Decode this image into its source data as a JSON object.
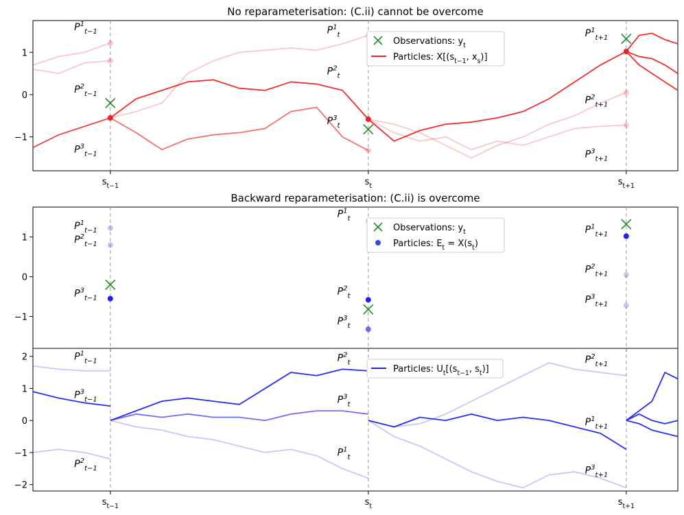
{
  "figure": {
    "ticks": {
      "time_labels": [
        "s_{t−1}",
        "s_t",
        "s_{t+1}"
      ]
    }
  },
  "chart_data": [
    {
      "id": "top",
      "type": "line",
      "title": "No reparameterisation: (C.ii) cannot be overcome",
      "xlabel": "",
      "ylabel": "",
      "xlim": [
        -0.3,
        2.2
      ],
      "ylim": [
        -1.8,
        1.75
      ],
      "yticks": [
        -1,
        0,
        1
      ],
      "xticks": [
        0,
        1,
        2
      ],
      "xtick_labels": [
        "s_{t−1}",
        "s_t",
        "s_{t+1}"
      ],
      "grid": false,
      "legend_position": "top-center",
      "legend": [
        {
          "label": "Observations: y_t",
          "marker": "x",
          "color": "#228b22"
        },
        {
          "label": "Particles: X[(s_{t−1}, x_s)]",
          "marker": "line",
          "color": "#ee2222"
        }
      ],
      "observations": [
        {
          "x": 0,
          "y": -0.2
        },
        {
          "x": 1,
          "y": -0.82
        },
        {
          "x": 2,
          "y": 1.32
        }
      ],
      "particle_points": [
        {
          "x": 0,
          "y": 1.22,
          "alpha": 0.25
        },
        {
          "x": 0,
          "y": 0.8,
          "alpha": 0.25
        },
        {
          "x": 0,
          "y": -0.55,
          "alpha": 1.0
        },
        {
          "x": 1,
          "y": 1.4,
          "alpha": 0.25
        },
        {
          "x": 1,
          "y": -0.58,
          "alpha": 1.0
        },
        {
          "x": 1,
          "y": -1.32,
          "alpha": 0.25
        },
        {
          "x": 2,
          "y": 1.02,
          "alpha": 1.0
        },
        {
          "x": 2,
          "y": 0.05,
          "alpha": 0.25
        },
        {
          "x": 2,
          "y": -0.72,
          "alpha": 0.25
        }
      ],
      "series": [
        {
          "x": [
            -0.3,
            -0.2,
            -0.1,
            0
          ],
          "values": [
            0.6,
            0.5,
            0.75,
            0.8
          ],
          "alpha": 0.25
        },
        {
          "x": [
            -0.3,
            -0.2,
            -0.1,
            0
          ],
          "values": [
            0.7,
            0.9,
            1.0,
            1.22
          ],
          "alpha": 0.25
        },
        {
          "x": [
            -0.3,
            -0.2,
            -0.1,
            0
          ],
          "values": [
            -1.25,
            -0.95,
            -0.75,
            -0.55
          ],
          "alpha": 0.85
        },
        {
          "x": [
            0,
            0.1,
            0.2,
            0.3,
            0.4,
            0.5,
            0.6,
            0.7,
            0.8,
            0.9,
            1.0
          ],
          "values": [
            -0.55,
            -0.1,
            0.1,
            0.3,
            0.35,
            0.15,
            0.1,
            0.3,
            0.25,
            0.1,
            -0.58
          ],
          "alpha": 0.95
        },
        {
          "x": [
            0,
            0.1,
            0.2,
            0.3,
            0.4,
            0.5,
            0.6,
            0.7,
            0.8,
            0.9,
            1.0
          ],
          "values": [
            -0.55,
            -0.4,
            -0.2,
            0.5,
            0.8,
            1.0,
            1.05,
            1.1,
            1.05,
            1.2,
            1.4
          ],
          "alpha": 0.25
        },
        {
          "x": [
            0,
            0.1,
            0.2,
            0.3,
            0.4,
            0.5,
            0.6,
            0.7,
            0.8,
            0.9,
            1.0
          ],
          "values": [
            -0.55,
            -0.9,
            -1.3,
            -1.05,
            -0.95,
            -0.9,
            -0.8,
            -0.4,
            -0.3,
            -1.0,
            -1.32
          ],
          "alpha": 0.65
        },
        {
          "x": [
            1.0,
            1.1,
            1.2,
            1.3,
            1.4,
            1.5,
            1.6,
            1.7,
            1.8,
            1.9,
            2.0
          ],
          "values": [
            -0.58,
            -1.1,
            -0.85,
            -0.7,
            -0.65,
            -0.55,
            -0.4,
            -0.1,
            0.3,
            0.7,
            1.02
          ],
          "alpha": 0.95
        },
        {
          "x": [
            1.0,
            1.1,
            1.2,
            1.3,
            1.4,
            1.5,
            1.6,
            1.7,
            1.8,
            1.9,
            2.0
          ],
          "values": [
            -0.58,
            -0.7,
            -0.9,
            -1.2,
            -1.5,
            -1.2,
            -1.0,
            -0.7,
            -0.5,
            -0.2,
            0.05
          ],
          "alpha": 0.25
        },
        {
          "x": [
            1.0,
            1.1,
            1.2,
            1.3,
            1.4,
            1.5,
            1.6,
            1.7,
            1.8,
            1.9,
            2.0
          ],
          "values": [
            -0.58,
            -0.9,
            -1.1,
            -1.0,
            -1.3,
            -1.1,
            -1.2,
            -1.0,
            -0.8,
            -0.75,
            -0.72
          ],
          "alpha": 0.25
        },
        {
          "x": [
            2.0,
            2.05,
            2.1,
            2.15,
            2.2
          ],
          "values": [
            1.02,
            1.4,
            1.45,
            1.3,
            1.2
          ],
          "alpha": 0.95
        },
        {
          "x": [
            2.0,
            2.05,
            2.1,
            2.15,
            2.2
          ],
          "values": [
            1.02,
            0.9,
            0.85,
            0.7,
            0.5
          ],
          "alpha": 0.95
        },
        {
          "x": [
            2.0,
            2.05,
            2.1,
            2.15,
            2.2
          ],
          "values": [
            1.02,
            0.7,
            0.5,
            0.3,
            0.1
          ],
          "alpha": 0.95
        }
      ],
      "annotations": [
        {
          "text": "P^1_{t−1}",
          "x": -0.14,
          "y": 1.52
        },
        {
          "text": "P^2_{t−1}",
          "x": -0.14,
          "y": 0.05
        },
        {
          "text": "P^3_{t−1}",
          "x": -0.14,
          "y": -1.37
        },
        {
          "text": "P^1_t",
          "x": 0.84,
          "y": 1.45
        },
        {
          "text": "P^2_t",
          "x": 0.84,
          "y": 0.48
        },
        {
          "text": "P^3_t",
          "x": 0.84,
          "y": -0.7
        },
        {
          "text": "P^1_{t+1}",
          "x": 1.84,
          "y": 1.38
        },
        {
          "text": "P^2_{t+1}",
          "x": 1.84,
          "y": -0.2
        },
        {
          "text": "P^3_{t+1}",
          "x": 1.84,
          "y": -1.48
        }
      ]
    },
    {
      "id": "middle",
      "type": "scatter",
      "title": "Backward reparameterisation: (C.ii) is overcome",
      "xlabel": "",
      "ylabel": "",
      "xlim": [
        -0.3,
        2.2
      ],
      "ylim": [
        -1.8,
        1.75
      ],
      "yticks": [
        -1,
        0,
        1
      ],
      "xticks": [
        0,
        1,
        2
      ],
      "grid": false,
      "legend_position": "top-center",
      "legend": [
        {
          "label": "Observations: y_t",
          "marker": "x",
          "color": "#228b22"
        },
        {
          "label": "Particles: E_t = X(s_t)",
          "marker": "dot",
          "color": "#1010dd"
        }
      ],
      "observations": [
        {
          "x": 0,
          "y": -0.2
        },
        {
          "x": 1,
          "y": -0.82
        },
        {
          "x": 2,
          "y": 1.32
        }
      ],
      "particle_points": [
        {
          "x": 0,
          "y": 1.22,
          "alpha": 0.25
        },
        {
          "x": 0,
          "y": 0.8,
          "alpha": 0.25
        },
        {
          "x": 0,
          "y": -0.55,
          "alpha": 1.0
        },
        {
          "x": 1,
          "y": 1.4,
          "alpha": 0.25
        },
        {
          "x": 1,
          "y": -0.58,
          "alpha": 1.0
        },
        {
          "x": 1,
          "y": -1.32,
          "alpha": 0.65
        },
        {
          "x": 2,
          "y": 1.02,
          "alpha": 1.0
        },
        {
          "x": 2,
          "y": 0.05,
          "alpha": 0.25
        },
        {
          "x": 2,
          "y": -0.72,
          "alpha": 0.25
        }
      ],
      "annotations": [
        {
          "text": "P^1_{t−1}",
          "x": -0.14,
          "y": 1.2
        },
        {
          "text": "P^2_{t−1}",
          "x": -0.14,
          "y": 0.85
        },
        {
          "text": "P^3_{t−1}",
          "x": -0.14,
          "y": -0.5
        },
        {
          "text": "P^1_t",
          "x": 0.88,
          "y": 1.5
        },
        {
          "text": "P^2_t",
          "x": 0.88,
          "y": -0.45
        },
        {
          "text": "P^3_t",
          "x": 0.88,
          "y": -1.2
        },
        {
          "text": "P^1_{t+1}",
          "x": 1.84,
          "y": 1.1
        },
        {
          "text": "P^2_{t+1}",
          "x": 1.84,
          "y": 0.1
        },
        {
          "text": "P^3_{t+1}",
          "x": 1.84,
          "y": -0.65
        }
      ]
    },
    {
      "id": "bottom",
      "type": "line",
      "title": "",
      "xlabel": "",
      "ylabel": "",
      "xlim": [
        -0.3,
        2.2
      ],
      "ylim": [
        -2.2,
        2.25
      ],
      "yticks": [
        -2,
        -1,
        0,
        1,
        2
      ],
      "xticks": [
        0,
        1,
        2
      ],
      "xtick_labels": [
        "s_{t−1}",
        "s_t",
        "s_{t+1}"
      ],
      "grid": false,
      "legend_position": "top-center",
      "legend": [
        {
          "label": "Particles: U_t[(s_{t−1}, s_t)]",
          "marker": "line",
          "color": "#2020ee"
        }
      ],
      "series": [
        {
          "x": [
            -0.3,
            -0.2,
            -0.1,
            0
          ],
          "values": [
            1.7,
            1.6,
            1.55,
            1.55
          ],
          "alpha": 0.25
        },
        {
          "x": [
            -0.3,
            -0.2,
            -0.1,
            0
          ],
          "values": [
            0.9,
            0.7,
            0.55,
            0.45
          ],
          "alpha": 0.95
        },
        {
          "x": [
            -0.3,
            -0.2,
            -0.1,
            0
          ],
          "values": [
            -1.0,
            -0.9,
            -1.0,
            -1.2
          ],
          "alpha": 0.25
        },
        {
          "x": [
            0,
            0.1,
            0.2,
            0.3,
            0.4,
            0.5,
            0.6,
            0.7,
            0.8,
            0.9,
            1.0
          ],
          "values": [
            0.0,
            0.3,
            0.6,
            0.7,
            0.6,
            0.5,
            1.0,
            1.5,
            1.4,
            1.6,
            1.55
          ],
          "alpha": 0.95
        },
        {
          "x": [
            0,
            0.1,
            0.2,
            0.3,
            0.4,
            0.5,
            0.6,
            0.7,
            0.8,
            0.9,
            1.0
          ],
          "values": [
            0.0,
            0.2,
            0.1,
            0.2,
            0.1,
            0.1,
            0.0,
            0.2,
            0.3,
            0.3,
            0.2
          ],
          "alpha": 0.65
        },
        {
          "x": [
            0,
            0.1,
            0.2,
            0.3,
            0.4,
            0.5,
            0.6,
            0.7,
            0.8,
            0.9,
            1.0
          ],
          "values": [
            0.0,
            -0.2,
            -0.3,
            -0.5,
            -0.6,
            -0.8,
            -1.0,
            -0.9,
            -1.1,
            -1.5,
            -1.8
          ],
          "alpha": 0.25
        },
        {
          "x": [
            1.0,
            1.1,
            1.2,
            1.3,
            1.4,
            1.5,
            1.6,
            1.7,
            1.8,
            1.9,
            2.0
          ],
          "values": [
            0.0,
            -0.2,
            0.1,
            0.0,
            0.2,
            0.0,
            0.1,
            0.0,
            -0.2,
            -0.4,
            -0.9
          ],
          "alpha": 0.95
        },
        {
          "x": [
            1.0,
            1.1,
            1.2,
            1.3,
            1.4,
            1.5,
            1.6,
            1.7,
            1.8,
            1.9,
            2.0
          ],
          "values": [
            0.0,
            -0.2,
            -0.1,
            0.2,
            0.6,
            1.0,
            1.4,
            1.8,
            1.6,
            1.5,
            1.4
          ],
          "alpha": 0.25
        },
        {
          "x": [
            1.0,
            1.1,
            1.2,
            1.3,
            1.4,
            1.5,
            1.6,
            1.7,
            1.8,
            1.9,
            2.0
          ],
          "values": [
            0.0,
            -0.5,
            -0.8,
            -1.2,
            -1.6,
            -1.9,
            -2.1,
            -1.7,
            -1.6,
            -1.8,
            -2.1
          ],
          "alpha": 0.25
        },
        {
          "x": [
            2.0,
            2.05,
            2.1,
            2.15,
            2.2
          ],
          "values": [
            0.0,
            0.3,
            0.6,
            1.5,
            1.3
          ],
          "alpha": 0.95
        },
        {
          "x": [
            2.0,
            2.05,
            2.1,
            2.15,
            2.2
          ],
          "values": [
            0.0,
            0.2,
            0.0,
            -0.1,
            0.0
          ],
          "alpha": 0.95
        },
        {
          "x": [
            2.0,
            2.05,
            2.1,
            2.15,
            2.2
          ],
          "values": [
            0.0,
            -0.1,
            -0.3,
            -0.4,
            -0.5
          ],
          "alpha": 0.95
        }
      ],
      "annotations": [
        {
          "text": "P^1_{t−1}",
          "x": -0.14,
          "y": 1.9
        },
        {
          "text": "P^3_{t−1}",
          "x": -0.14,
          "y": 0.7
        },
        {
          "text": "P^2_{t−1}",
          "x": -0.14,
          "y": -1.45
        },
        {
          "text": "P^2_t",
          "x": 0.88,
          "y": 1.85
        },
        {
          "text": "P^3_t",
          "x": 0.88,
          "y": 0.55
        },
        {
          "text": "P^1_t",
          "x": 0.88,
          "y": -1.1
        },
        {
          "text": "P^2_{t+1}",
          "x": 1.84,
          "y": 1.8
        },
        {
          "text": "P^1_{t+1}",
          "x": 1.84,
          "y": -0.15
        },
        {
          "text": "P^3_{t+1}",
          "x": 1.84,
          "y": -1.65
        }
      ]
    }
  ]
}
